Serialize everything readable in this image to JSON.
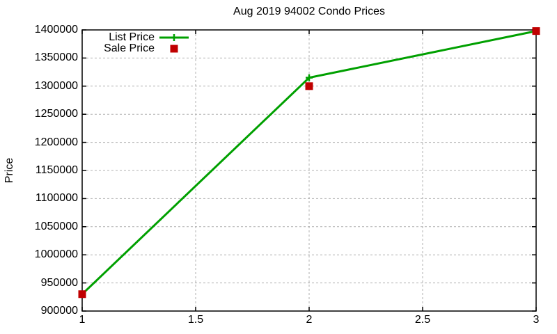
{
  "title": "Aug 2019 94002 Condo Prices",
  "axes": {
    "ylabel": "Price"
  },
  "legend": {
    "items": [
      {
        "label": "List Price",
        "marker": "plus-line",
        "color": "#00a000"
      },
      {
        "label": "Sale Price",
        "marker": "square",
        "color": "#c00000"
      }
    ]
  },
  "chart_data": {
    "type": "line",
    "title": "Aug 2019 94002 Condo Prices",
    "xlabel": "",
    "ylabel": "Price",
    "x": [
      1,
      2,
      3
    ],
    "series": [
      {
        "name": "List Price",
        "style": "line+markers",
        "marker": "plus",
        "color": "#00a000",
        "values": [
          930000,
          1315000,
          1398000
        ]
      },
      {
        "name": "Sale Price",
        "style": "markers",
        "marker": "square",
        "color": "#c00000",
        "values": [
          930000,
          1300000,
          1398000
        ]
      }
    ],
    "xlim": [
      1,
      3
    ],
    "ylim": [
      900000,
      1400000
    ],
    "xticks": [
      1,
      1.5,
      2,
      2.5,
      3
    ],
    "yticks": [
      900000,
      950000,
      1000000,
      1050000,
      1100000,
      1150000,
      1200000,
      1250000,
      1300000,
      1350000,
      1400000
    ],
    "grid": true,
    "grid_color": "#b0b0b0",
    "border_color": "#000000",
    "background_color": "#ffffff",
    "legend_position": "top-left"
  }
}
